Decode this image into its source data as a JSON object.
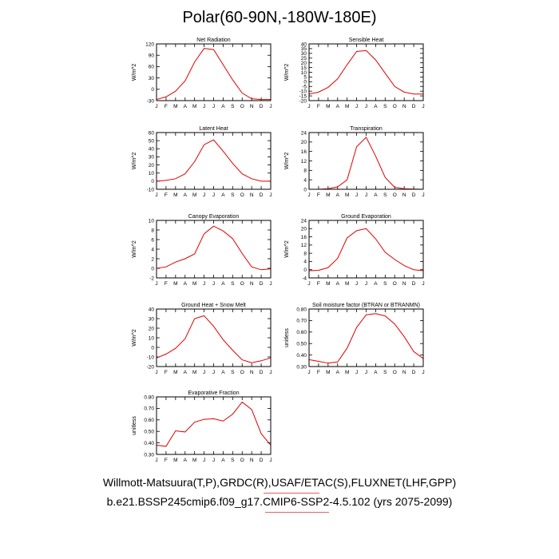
{
  "page": {
    "title": "Polar(60-90N,-180W-180E)",
    "footer_line1": "Willmott-Matsuura(T,P),GRDC(R),USAF/ETAC(S),FLUXNET(LHF,GPP)",
    "footer_line2": "b.e21.BSSP245cmip6.f09_g17.CMIP6-SSP2-4.5.102 (yrs 2075-2099)",
    "line_color": "#e00000"
  },
  "chart_data": [
    {
      "type": "line",
      "title": "Net Radiation",
      "ylabel": "W/m^2",
      "categories": [
        "J",
        "F",
        "M",
        "A",
        "M",
        "J",
        "J",
        "A",
        "S",
        "O",
        "N",
        "D",
        "J"
      ],
      "values": [
        -27,
        -20,
        -5,
        22,
        72,
        108,
        105,
        65,
        25,
        -10,
        -25,
        -27,
        -27
      ],
      "ylim": [
        -30,
        120
      ],
      "yticks": [
        -30,
        0,
        30,
        60,
        90,
        120
      ],
      "yticklabels": [
        "-30",
        "0",
        "30",
        "60",
        "90",
        "120"
      ]
    },
    {
      "type": "line",
      "title": "Sensible Heat",
      "ylabel": "W/m^2",
      "categories": [
        "J",
        "F",
        "M",
        "A",
        "M",
        "J",
        "J",
        "A",
        "S",
        "O",
        "N",
        "D",
        "J"
      ],
      "values": [
        -13,
        -11,
        -6,
        3,
        18,
        32,
        33,
        23,
        9,
        -5,
        -11,
        -13,
        -13
      ],
      "ylim": [
        -20,
        40
      ],
      "yticks": [
        -20,
        -15,
        -10,
        -5,
        0,
        5,
        10,
        15,
        20,
        25,
        30,
        35,
        40
      ],
      "yticklabels": [
        "-20",
        "-15",
        "-10",
        "-5",
        "0",
        "5",
        "10",
        "15",
        "20",
        "25",
        "30",
        "35",
        "40"
      ]
    },
    {
      "type": "line",
      "title": "Latent Heat",
      "ylabel": "W/m^2",
      "categories": [
        "J",
        "F",
        "M",
        "A",
        "M",
        "J",
        "J",
        "A",
        "S",
        "O",
        "N",
        "D",
        "J"
      ],
      "values": [
        0,
        1,
        3,
        9,
        24,
        45,
        51,
        37,
        22,
        9,
        3,
        0,
        0
      ],
      "ylim": [
        -10,
        60
      ],
      "yticks": [
        -10,
        0,
        10,
        20,
        30,
        40,
        50,
        60
      ],
      "yticklabels": [
        "-10",
        "0",
        "10",
        "20",
        "30",
        "40",
        "50",
        "60"
      ]
    },
    {
      "type": "line",
      "title": "Transpiration",
      "ylabel": "W/m^2",
      "categories": [
        "J",
        "F",
        "M",
        "A",
        "M",
        "J",
        "J",
        "A",
        "S",
        "O",
        "N",
        "D",
        "J"
      ],
      "values": [
        0,
        0,
        0.2,
        1,
        4,
        18,
        22,
        14,
        5,
        0.8,
        0.2,
        0.1,
        0
      ],
      "ylim": [
        0,
        24
      ],
      "yticks": [
        0,
        4,
        8,
        12,
        16,
        20,
        24
      ],
      "yticklabels": [
        "0",
        "4",
        "8",
        "12",
        "16",
        "20",
        "24"
      ]
    },
    {
      "type": "line",
      "title": "Canopy Evaporation",
      "ylabel": "W/m^2",
      "categories": [
        "J",
        "F",
        "M",
        "A",
        "M",
        "J",
        "J",
        "A",
        "S",
        "O",
        "N",
        "D",
        "J"
      ],
      "values": [
        0,
        0.3,
        1.3,
        2,
        3,
        7.2,
        8.8,
        7.8,
        6.2,
        3.1,
        0.3,
        -0.3,
        -0.1
      ],
      "ylim": [
        -2,
        10
      ],
      "yticks": [
        -2,
        0,
        2,
        4,
        6,
        8,
        10
      ],
      "yticklabels": [
        "-2",
        "0",
        "2",
        "4",
        "6",
        "8",
        "10"
      ]
    },
    {
      "type": "line",
      "title": "Ground Evaporation",
      "ylabel": "W/m^2",
      "categories": [
        "J",
        "F",
        "M",
        "A",
        "M",
        "J",
        "J",
        "A",
        "S",
        "O",
        "N",
        "D",
        "J"
      ],
      "values": [
        -0.5,
        -0.3,
        1,
        5.5,
        15.5,
        19,
        20,
        15,
        8.5,
        5,
        2,
        0,
        -0.5
      ],
      "ylim": [
        -4,
        24
      ],
      "yticks": [
        -4,
        0,
        4,
        8,
        12,
        16,
        20,
        24
      ],
      "yticklabels": [
        "-4",
        "0",
        "4",
        "8",
        "12",
        "16",
        "20",
        "24"
      ]
    },
    {
      "type": "line",
      "title": "Ground Heat + Snow Melt",
      "ylabel": "W/m^2",
      "categories": [
        "J",
        "F",
        "M",
        "A",
        "M",
        "J",
        "J",
        "A",
        "S",
        "O",
        "N",
        "D",
        "J"
      ],
      "values": [
        -11,
        -7,
        -1,
        9,
        30,
        33,
        22,
        8,
        -3,
        -13,
        -16,
        -14,
        -11
      ],
      "ylim": [
        -20,
        40
      ],
      "yticks": [
        -20,
        -10,
        0,
        10,
        20,
        30,
        40
      ],
      "yticklabels": [
        "-20",
        "-10",
        "0",
        "10",
        "20",
        "30",
        "40"
      ]
    },
    {
      "type": "line",
      "title": "Soil moisture factor (BTRAN or BTRANMN)",
      "ylabel": "unitless",
      "categories": [
        "J",
        "F",
        "M",
        "A",
        "M",
        "J",
        "J",
        "A",
        "S",
        "O",
        "N",
        "D",
        "J"
      ],
      "values": [
        0.36,
        0.345,
        0.33,
        0.34,
        0.46,
        0.64,
        0.75,
        0.76,
        0.74,
        0.67,
        0.56,
        0.43,
        0.37
      ],
      "ylim": [
        0.3,
        0.8
      ],
      "yticks": [
        0.3,
        0.4,
        0.5,
        0.6,
        0.7,
        0.8
      ],
      "yticklabels": [
        "0.30",
        "0.40",
        "0.50",
        "0.60",
        "0.70",
        "0.80"
      ]
    },
    {
      "type": "line",
      "title": "Evaporative Fraction",
      "ylabel": "unitless",
      "categories": [
        "J",
        "F",
        "M",
        "A",
        "M",
        "J",
        "J",
        "A",
        "S",
        "O",
        "N",
        "D",
        "J"
      ],
      "values": [
        0.38,
        0.37,
        0.505,
        0.495,
        0.58,
        0.605,
        0.61,
        0.59,
        0.65,
        0.755,
        0.69,
        0.48,
        0.38
      ],
      "ylim": [
        0.3,
        0.8
      ],
      "yticks": [
        0.3,
        0.4,
        0.5,
        0.6,
        0.7,
        0.8
      ],
      "yticklabels": [
        "0.30",
        "0.40",
        "0.50",
        "0.60",
        "0.70",
        "0.80"
      ]
    }
  ]
}
